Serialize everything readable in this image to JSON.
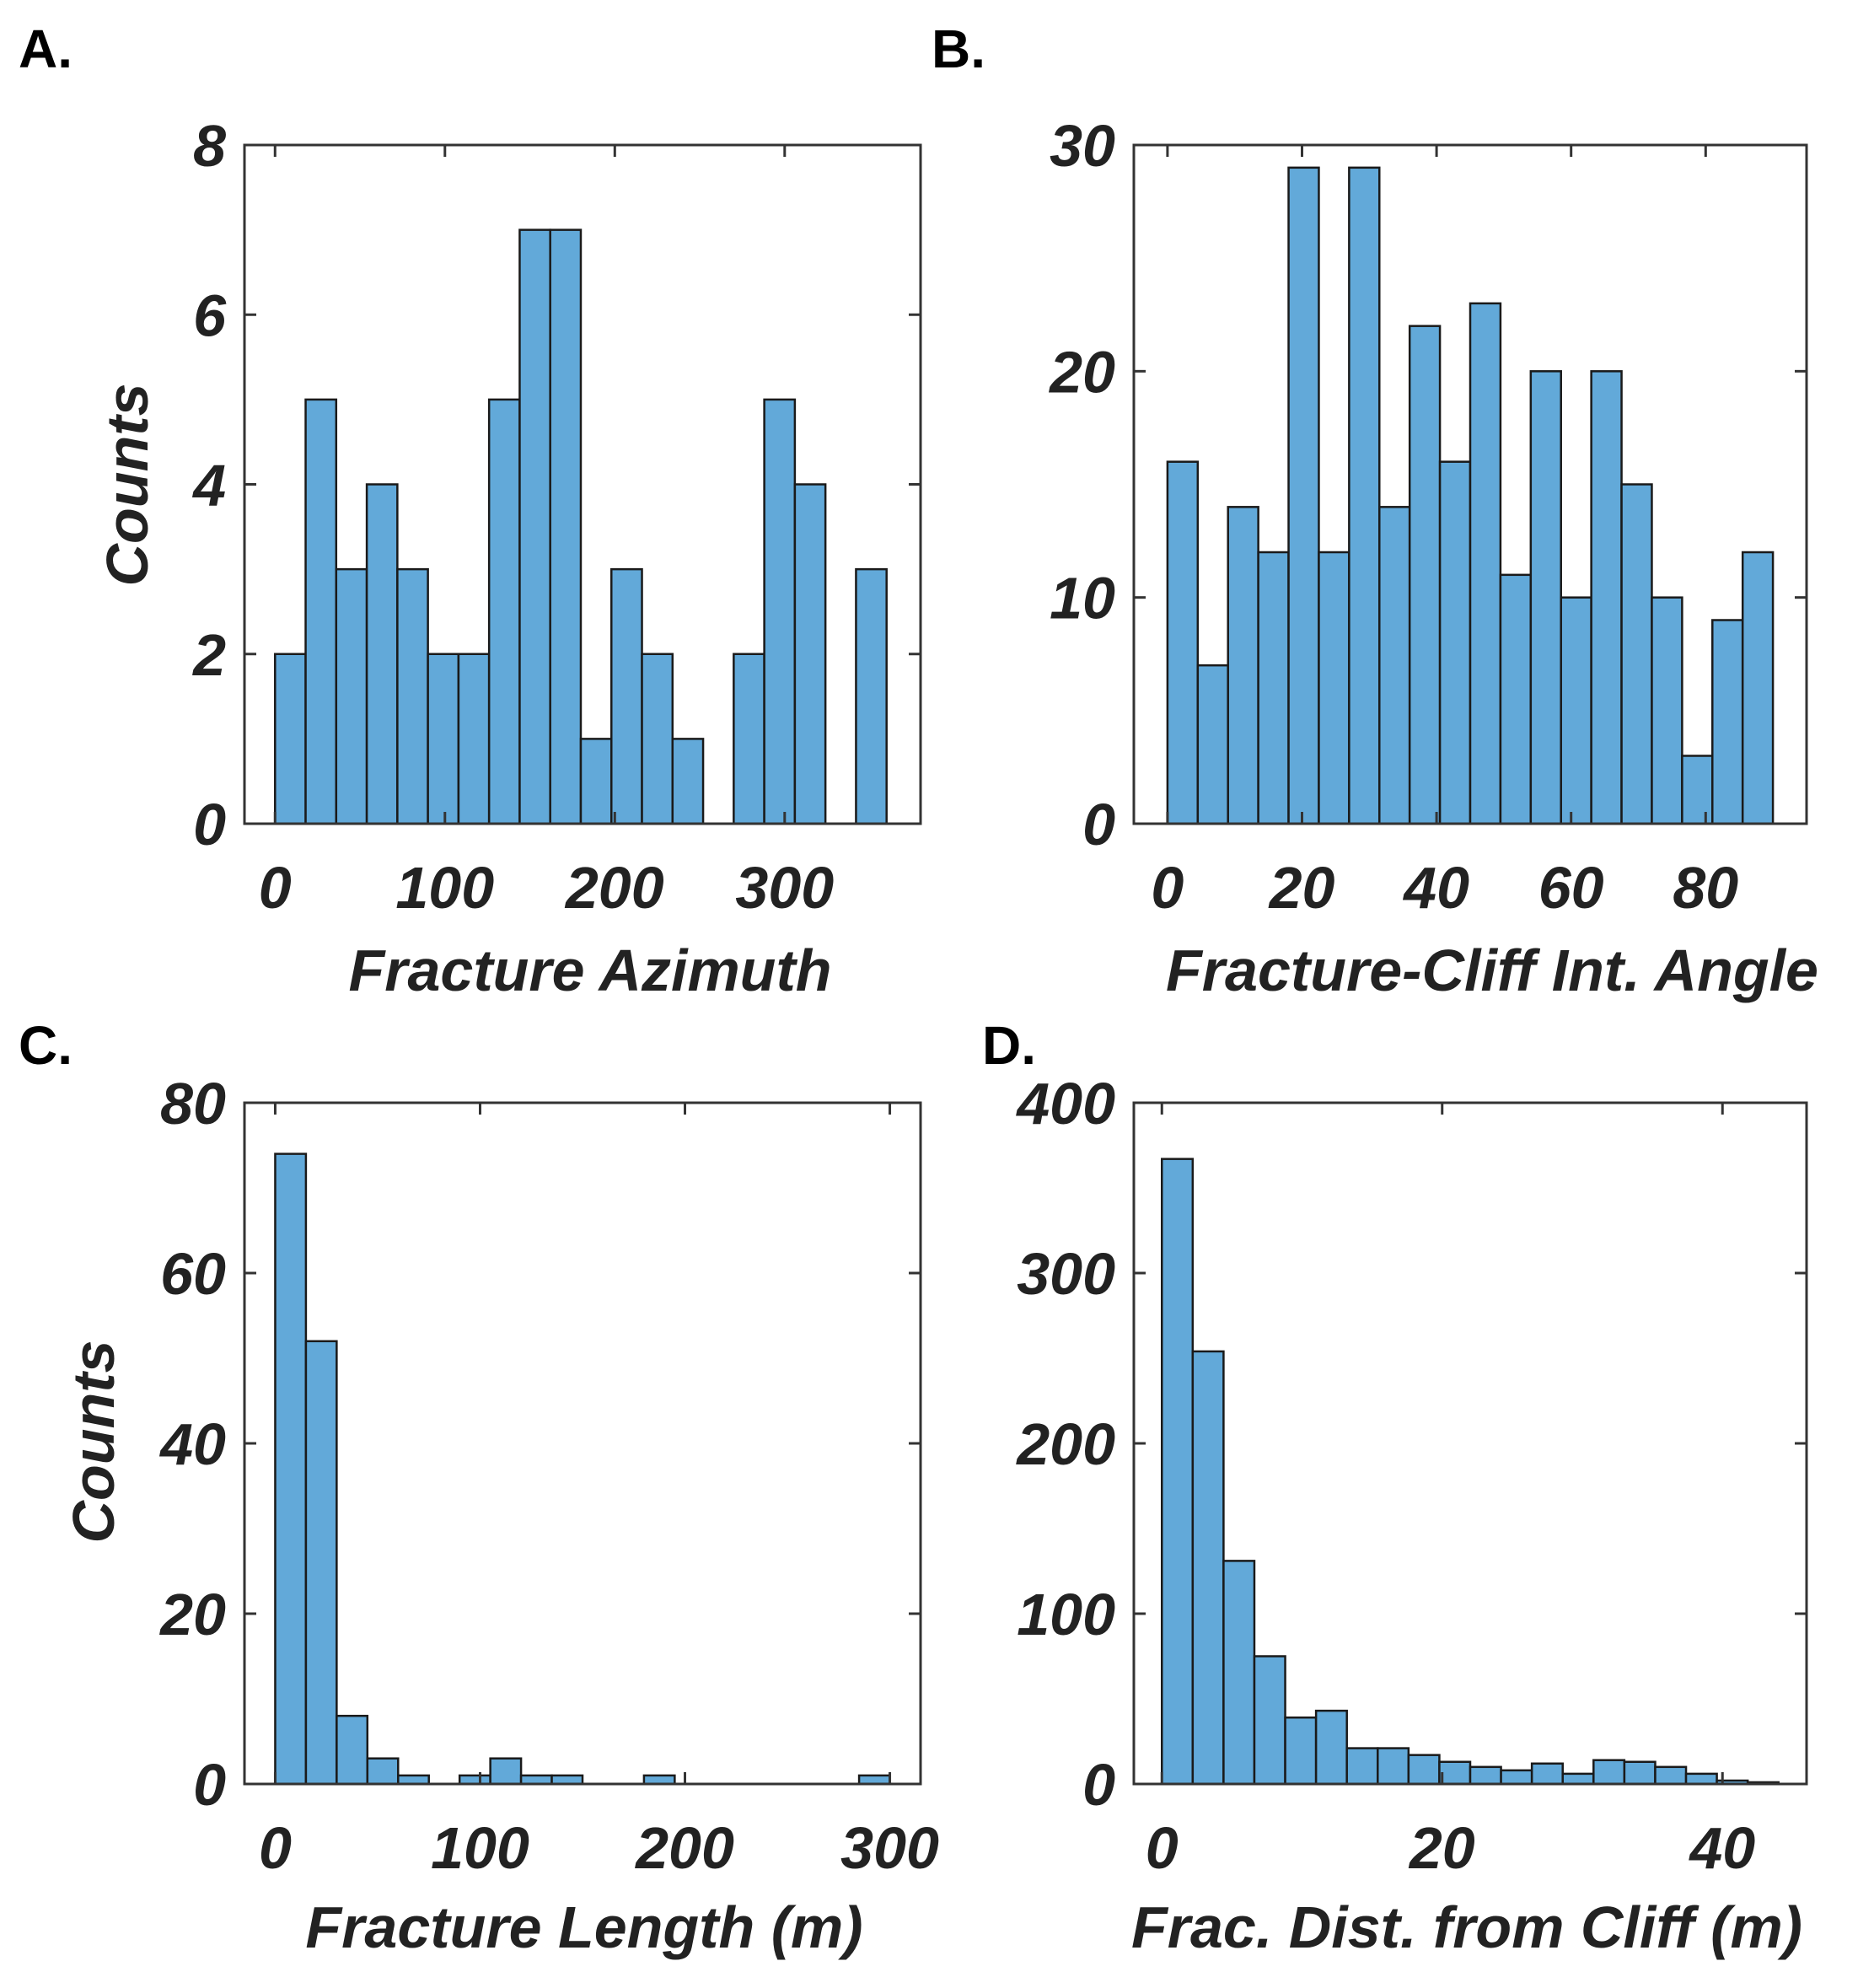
{
  "chart_data": [
    {
      "type": "bar",
      "panel": "A.",
      "title": "",
      "xlabel": "Fracture Azimuth",
      "ylabel": "Counts",
      "bin_start": 0,
      "bin_width": 18,
      "values": [
        2,
        5,
        3,
        4,
        3,
        2,
        2,
        5,
        7,
        7,
        1,
        3,
        2,
        1,
        0,
        2,
        5,
        4,
        0,
        3
      ],
      "xlim": [
        -18,
        380
      ],
      "ylim": [
        0,
        8
      ],
      "xticks": [
        0,
        100,
        200,
        300
      ],
      "yticks": [
        0,
        2,
        4,
        6,
        8
      ],
      "xtick_labels": [
        "0",
        "100",
        "200",
        "300"
      ],
      "ytick_labels": [
        "0",
        "2",
        "4",
        "6",
        "8"
      ],
      "bar_color": "#62A9D9",
      "grid": false
    },
    {
      "type": "bar",
      "panel": "B.",
      "title": "",
      "xlabel": "Fracture-Cliff Int. Angle",
      "ylabel": "",
      "bin_start": 0,
      "bin_width": 4.5,
      "values": [
        16,
        7,
        14,
        12,
        29,
        12,
        29,
        14,
        22,
        16,
        23,
        11,
        20,
        10,
        20,
        15,
        10,
        3,
        9,
        12
      ],
      "xlim": [
        -5,
        95
      ],
      "ylim": [
        0,
        30
      ],
      "xticks": [
        0,
        20,
        40,
        60,
        80
      ],
      "yticks": [
        0,
        10,
        20,
        30
      ],
      "xtick_labels": [
        "0",
        "20",
        "40",
        "60",
        "80"
      ],
      "ytick_labels": [
        "0",
        "10",
        "20",
        "30"
      ],
      "bar_color": "#62A9D9",
      "grid": false
    },
    {
      "type": "bar",
      "panel": "C.",
      "title": "",
      "xlabel": "Fracture Length (m)",
      "ylabel": "Counts",
      "bin_start": 0,
      "bin_width": 15,
      "values": [
        74,
        52,
        8,
        3,
        1,
        0,
        1,
        3,
        1,
        1,
        0,
        0,
        1,
        0,
        0,
        0,
        0,
        0,
        0,
        1
      ],
      "xlim": [
        -15,
        315
      ],
      "ylim": [
        0,
        80
      ],
      "xticks": [
        0,
        100,
        200,
        300
      ],
      "yticks": [
        0,
        20,
        40,
        60,
        80
      ],
      "xtick_labels": [
        "0",
        "100",
        "200",
        "300"
      ],
      "ytick_labels": [
        "0",
        "20",
        "40",
        "60",
        "80"
      ],
      "bar_color": "#62A9D9",
      "grid": false
    },
    {
      "type": "bar",
      "panel": "D.",
      "title": "",
      "xlabel": "Frac. Dist. from Cliff (m)",
      "ylabel": "",
      "bin_start": 0,
      "bin_width": 2.2,
      "values": [
        367,
        254,
        131,
        75,
        39,
        43,
        21,
        21,
        17,
        13,
        10,
        8,
        12,
        6,
        14,
        13,
        10,
        6,
        2,
        1
      ],
      "xlim": [
        -2,
        46
      ],
      "ylim": [
        0,
        400
      ],
      "xticks": [
        0,
        20,
        40
      ],
      "yticks": [
        0,
        100,
        200,
        300,
        400
      ],
      "xtick_labels": [
        "0",
        "20",
        "40"
      ],
      "ytick_labels": [
        "0",
        "100",
        "200",
        "300",
        "400"
      ],
      "bar_color": "#62A9D9",
      "grid": false
    }
  ]
}
